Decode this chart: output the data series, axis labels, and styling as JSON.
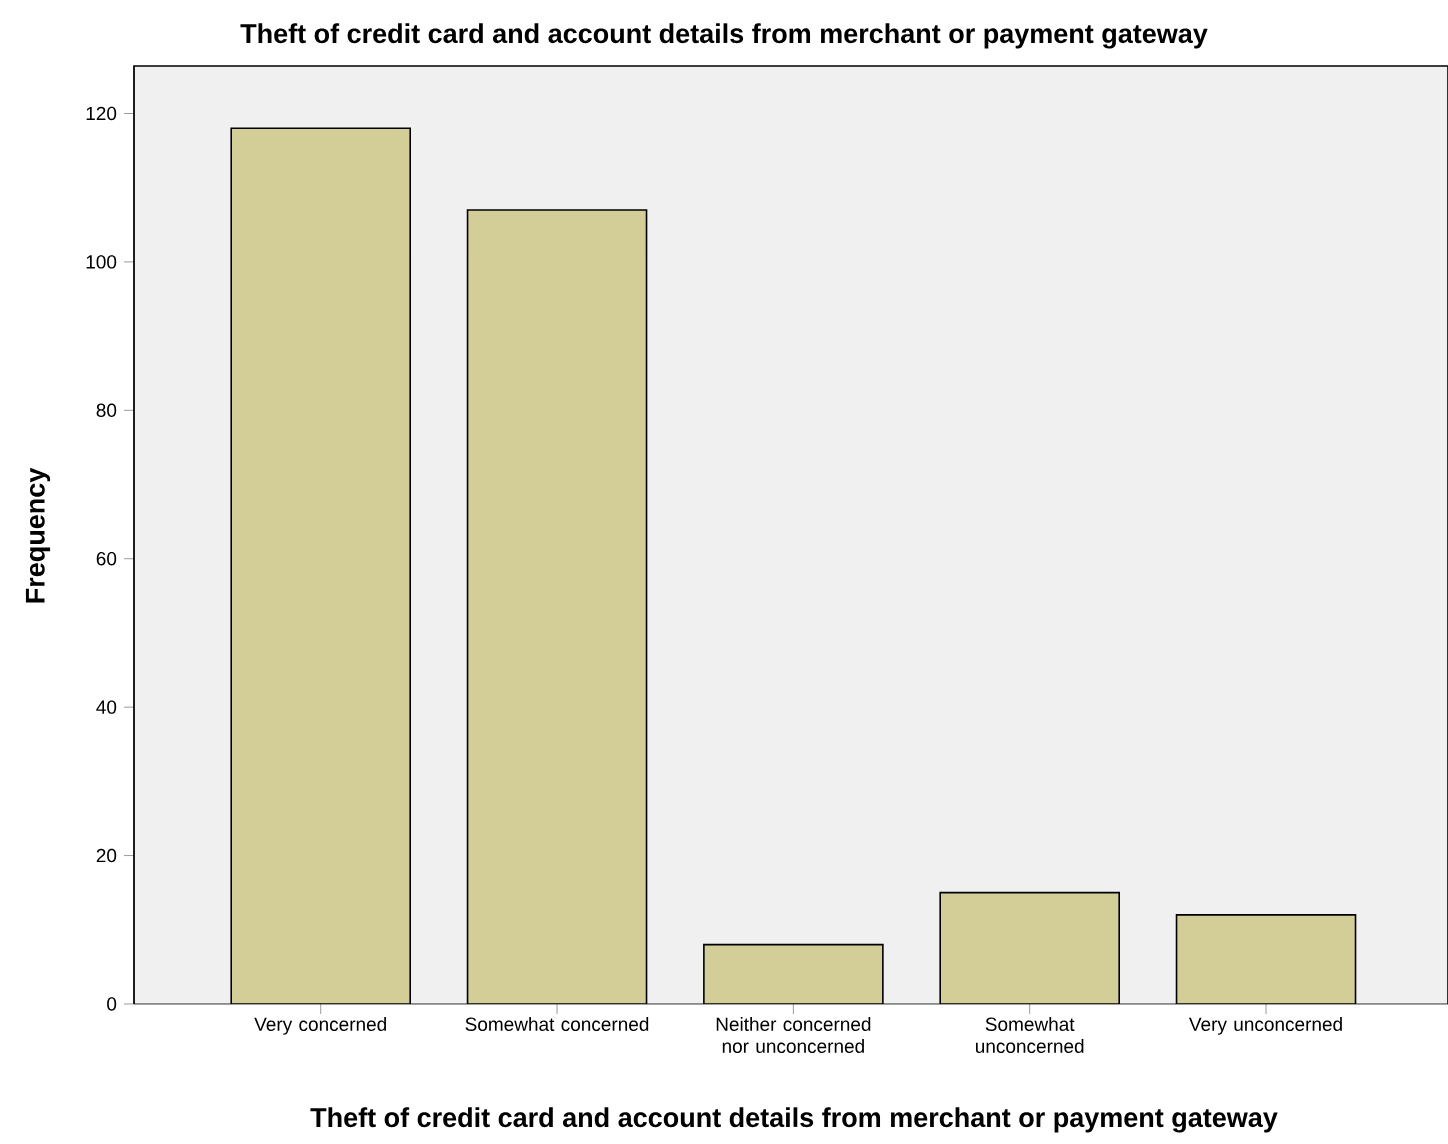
{
  "chart_data": {
    "type": "bar",
    "title": "Theft of credit card and account details from merchant or payment gateway",
    "xlabel": "Theft of credit card and account details from merchant or payment gateway",
    "ylabel": "Frequency",
    "categories": [
      "Very concerned",
      "Somewhat concerned",
      "Neither concerned nor unconcerned",
      "Somewhat unconcerned",
      "Very unconcerned"
    ],
    "values": [
      118,
      107,
      8,
      15,
      12
    ],
    "color": "#d3ce97",
    "ylim": [
      0,
      126.4
    ],
    "yticks": [
      0,
      20,
      40,
      60,
      80,
      100,
      120
    ],
    "grid": false
  }
}
